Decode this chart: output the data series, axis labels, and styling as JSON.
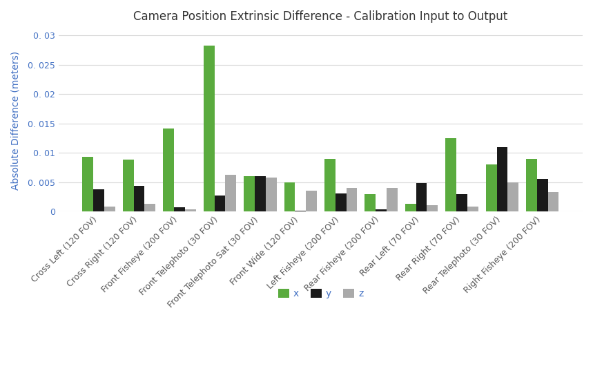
{
  "title": "Camera Position Extrinsic Difference - Calibration Input to Output",
  "ylabel": "Absolute Difference (meters)",
  "categories": [
    "Cross Left (120 FOV)",
    "Cross Right (120 FOV)",
    "Front Fisheye (200 FOV)",
    "Front Telephoto (30 FOV)",
    "Front Telephoto Sat (30 FOV)",
    "Front Wide (120 FOV)",
    "Left Fisheye (200 FOV)",
    "Rear Fisheye (200 FOV)",
    "Rear Left (70 FOV)",
    "Rear Right (70 FOV)",
    "Rear Telephoto (30 FOV)",
    "Right Fisheye (200 FOV)"
  ],
  "x_values": [
    0.0093,
    0.0088,
    0.0141,
    0.0283,
    0.006,
    0.005,
    0.009,
    0.003,
    0.0013,
    0.0125,
    0.008,
    0.009
  ],
  "y_values": [
    0.0038,
    0.0043,
    0.0007,
    0.0027,
    0.006,
    0.0001,
    0.0031,
    0.0003,
    0.0048,
    0.003,
    0.011,
    0.0055
  ],
  "z_values": [
    0.0008,
    0.0013,
    0.0004,
    0.0062,
    0.0058,
    0.0035,
    0.004,
    0.004,
    0.001,
    0.0008,
    0.005,
    0.0033
  ],
  "color_x": "#5aab3e",
  "color_y": "#1a1a1a",
  "color_z": "#aaaaaa",
  "ylim": [
    0,
    0.031
  ],
  "yticks": [
    0,
    0.005,
    0.01,
    0.015,
    0.02,
    0.025,
    0.03
  ],
  "background_color": "#ffffff",
  "grid_color": "#d9d9d9",
  "title_fontsize": 12,
  "axis_label_fontsize": 10,
  "tick_fontsize": 9,
  "label_color": "#4472c4",
  "tick_label_color": "#4472c4",
  "xtick_color": "#595959",
  "legend_labels": [
    "x",
    "y",
    "z"
  ],
  "legend_text_colors": [
    "#4472c4",
    "#4472c4",
    "#4472c4"
  ]
}
